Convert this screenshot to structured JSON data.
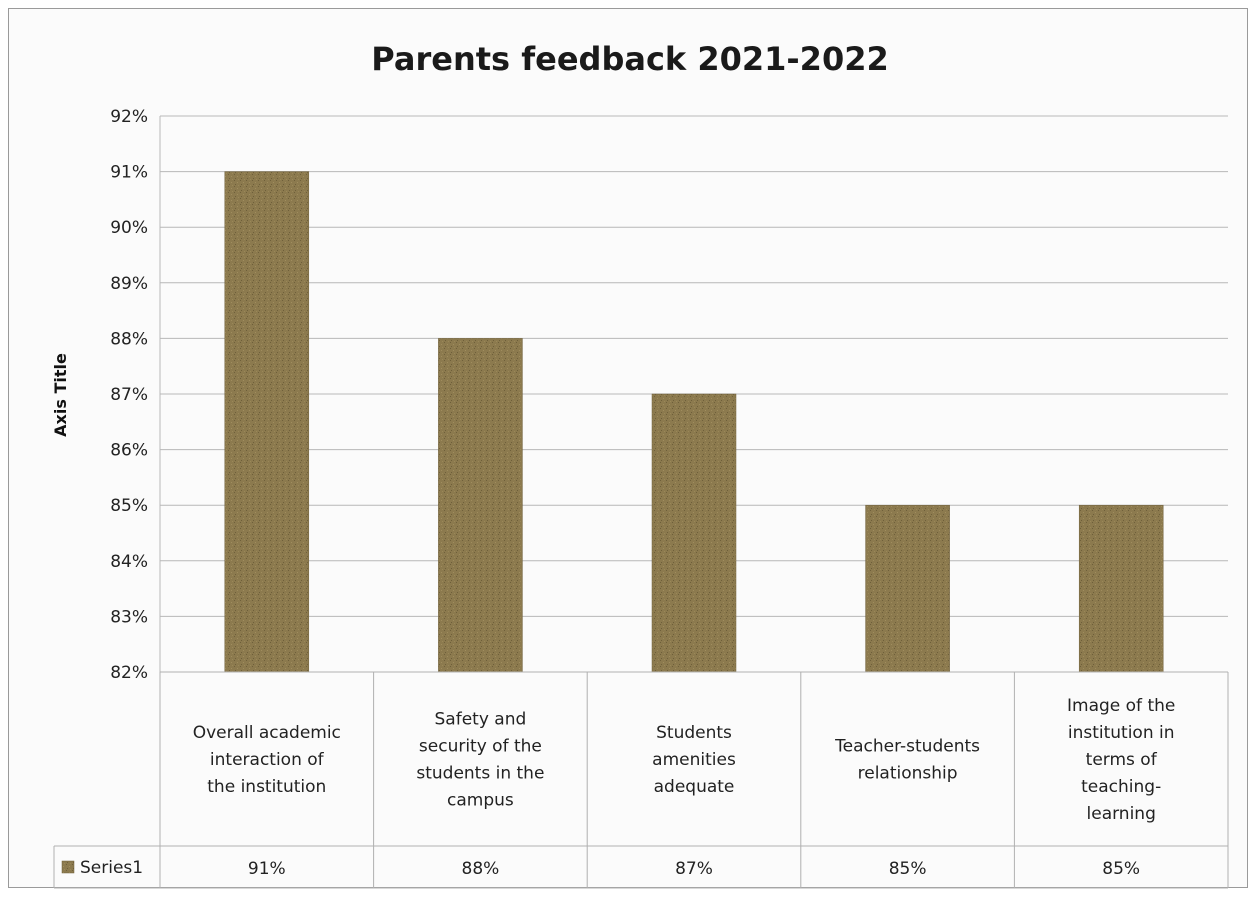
{
  "chart_data": {
    "type": "bar",
    "title": "Parents feedback 2021-2022",
    "ylabel": "Axis Title",
    "ylim": [
      0.82,
      0.92
    ],
    "yticks": [
      "82%",
      "83%",
      "84%",
      "85%",
      "86%",
      "87%",
      "88%",
      "89%",
      "90%",
      "91%",
      "92%"
    ],
    "categories": [
      "Overall academic interaction of the institution",
      "Safety and security of the students in the campus",
      "Students amenities adequate",
      "Teacher-students relationship",
      "Image of the institution in terms of teaching-learning"
    ],
    "category_lines": [
      [
        "Overall academic",
        "interaction of",
        "the institution"
      ],
      [
        "Safety and",
        "security of the",
        "students in the",
        "campus"
      ],
      [
        "Students",
        "amenities",
        "adequate"
      ],
      [
        "Teacher-students",
        "relationship"
      ],
      [
        "Image of the",
        "institution in",
        "terms of",
        "teaching-",
        "learning"
      ]
    ],
    "series": [
      {
        "name": "Series1",
        "values": [
          0.91,
          0.88,
          0.87,
          0.85,
          0.85
        ]
      }
    ],
    "value_labels": [
      "91%",
      "88%",
      "87%",
      "85%",
      "85%"
    ],
    "grid": true,
    "data_table": true,
    "colors": {
      "bar": "#8c7a4e",
      "bar_dark": "#6e5f3a"
    }
  }
}
